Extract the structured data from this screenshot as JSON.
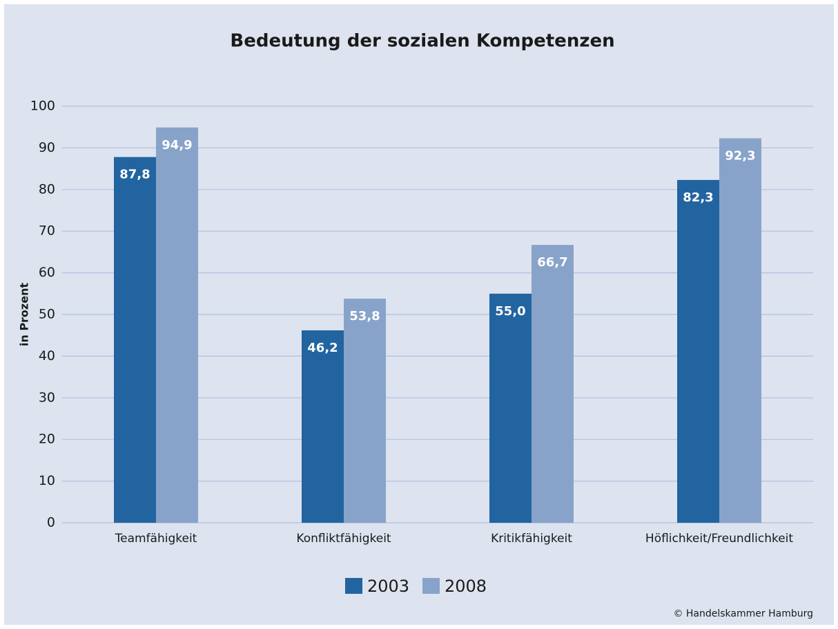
{
  "chart_data": {
    "type": "bar",
    "title": "Bedeutung der sozialen Kompetenzen",
    "y_label": "in Prozent",
    "source": "© Handelskammer Hamburg",
    "categories": [
      "Teamfähigkeit",
      "Konfliktfähigkeit",
      "Kritikfähigkeit",
      "Höflichkeit/Freundlichkeit"
    ],
    "series": [
      {
        "name": "2003",
        "color": "#2264a0",
        "values": [
          87.8,
          46.2,
          55.0,
          82.3
        ],
        "value_labels": [
          "87,8",
          "46,2",
          "55,0",
          "82,3"
        ]
      },
      {
        "name": "2008",
        "color": "#88a3c9",
        "values": [
          94.9,
          53.8,
          66.7,
          92.3
        ],
        "value_labels": [
          "94,9",
          "53,8",
          "66,7",
          "92,3"
        ]
      }
    ],
    "ylim": [
      0,
      100
    ],
    "yticks": [
      0,
      10,
      20,
      30,
      40,
      50,
      60,
      70,
      80,
      90,
      100
    ],
    "grid": true,
    "legend": "bottom"
  }
}
